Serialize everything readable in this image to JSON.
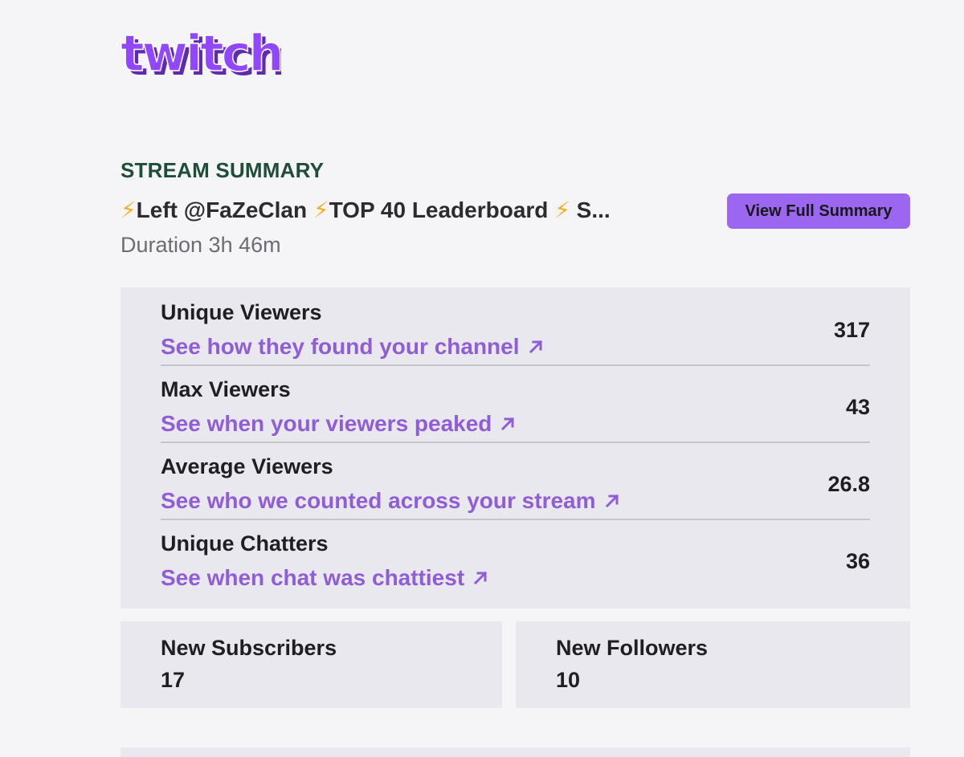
{
  "brand": {
    "logo_text": "twitch",
    "color": "#9147ff",
    "shadow_color": "#5c2bb0"
  },
  "summary": {
    "heading": "STREAM SUMMARY",
    "stream_title": "⚡Left @FaZeClan ⚡TOP 40 Leaderboard ⚡ S...",
    "duration": "Duration 3h 46m",
    "view_full_button": "View Full Summary"
  },
  "stats": [
    {
      "label": "Unique Viewers",
      "link": "See how they found your channel",
      "value": "317",
      "icon": "arrow-up-right-icon"
    },
    {
      "label": "Max Viewers",
      "link": "See when your viewers peaked",
      "value": "43",
      "icon": "arrow-up-right-icon"
    },
    {
      "label": "Average Viewers",
      "link": "See who we counted across your stream",
      "value": "26.8",
      "icon": "arrow-up-right-icon"
    },
    {
      "label": "Unique Chatters",
      "link": "See when chat was chattiest",
      "value": "36",
      "icon": "arrow-up-right-icon"
    }
  ],
  "cards": {
    "subscribers": {
      "label": "New Subscribers",
      "value": "17"
    },
    "followers": {
      "label": "New Followers",
      "value": "10"
    }
  },
  "colors": {
    "heading": "#1e4d3a",
    "accent": "#9b67f0",
    "link": "#8f5dd8",
    "panel": "#e9e8ee",
    "background": "#f5f4f7"
  }
}
